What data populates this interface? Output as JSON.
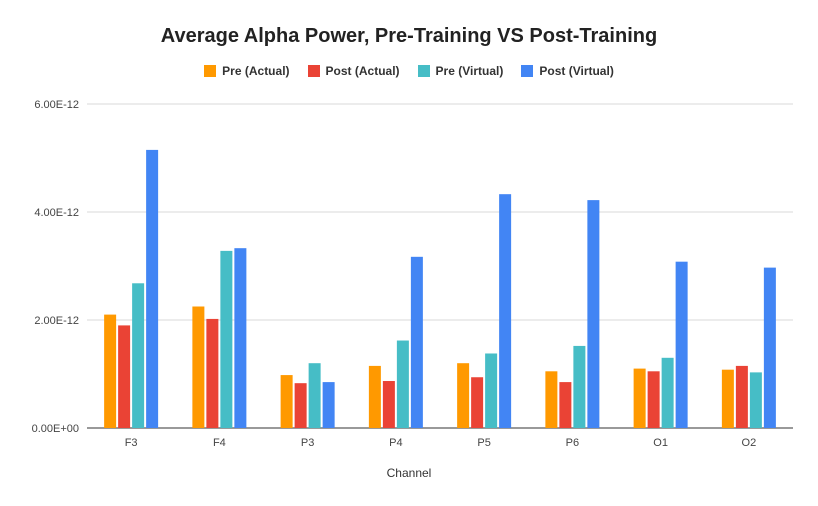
{
  "chart_data": {
    "type": "bar",
    "title": "Average Alpha Power, Pre-Training VS Post-Training",
    "xlabel": "Channel",
    "ylabel": "",
    "categories": [
      "F3",
      "F4",
      "P3",
      "P4",
      "P5",
      "P6",
      "O1",
      "O2"
    ],
    "series": [
      {
        "name": "Pre (Actual)",
        "color": "#ff9900",
        "values": [
          2.1e-12,
          2.25e-12,
          9.8e-13,
          1.15e-12,
          1.2e-12,
          1.05e-12,
          1.1e-12,
          1.08e-12
        ]
      },
      {
        "name": "Post (Actual)",
        "color": "#ea4335",
        "values": [
          1.9e-12,
          2.02e-12,
          8.3e-13,
          8.7e-13,
          9.4e-13,
          8.5e-13,
          1.05e-12,
          1.15e-12
        ]
      },
      {
        "name": "Pre (Virtual)",
        "color": "#46bdc6",
        "values": [
          2.68e-12,
          3.28e-12,
          1.2e-12,
          1.62e-12,
          1.38e-12,
          1.52e-12,
          1.3e-12,
          1.03e-12
        ]
      },
      {
        "name": "Post (Virtual)",
        "color": "#4285f4",
        "values": [
          5.15e-12,
          3.33e-12,
          8.5e-13,
          3.17e-12,
          4.33e-12,
          4.22e-12,
          3.08e-12,
          2.97e-12
        ]
      }
    ],
    "ylim": [
      0,
      6e-12
    ],
    "yticks": [
      {
        "value": 0,
        "label": "0.00E+00"
      },
      {
        "value": 2e-12,
        "label": "2.00E-12"
      },
      {
        "value": 4e-12,
        "label": "4.00E-12"
      },
      {
        "value": 6e-12,
        "label": "6.00E-12"
      }
    ],
    "grid": true,
    "legend_position": "top-center"
  }
}
